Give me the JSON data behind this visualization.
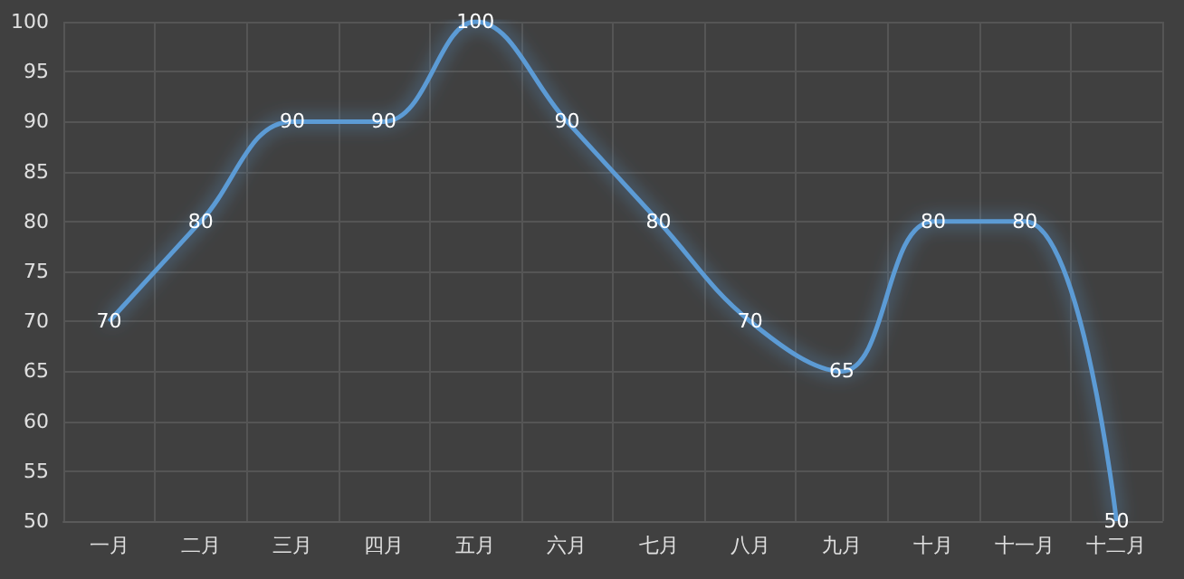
{
  "chart_data": {
    "type": "line",
    "categories": [
      "一月",
      "二月",
      "三月",
      "四月",
      "五月",
      "六月",
      "七月",
      "八月",
      "九月",
      "十月",
      "十一月",
      "十二月"
    ],
    "values": [
      70,
      80,
      90,
      90,
      100,
      90,
      80,
      70,
      65,
      80,
      80,
      50
    ],
    "color": "#5b9bd5",
    "ylim": [
      50,
      100
    ],
    "yticks": [
      50,
      55,
      60,
      65,
      70,
      75,
      80,
      85,
      90,
      95,
      100
    ],
    "grid": true,
    "data_labels": true,
    "marker": "none"
  }
}
